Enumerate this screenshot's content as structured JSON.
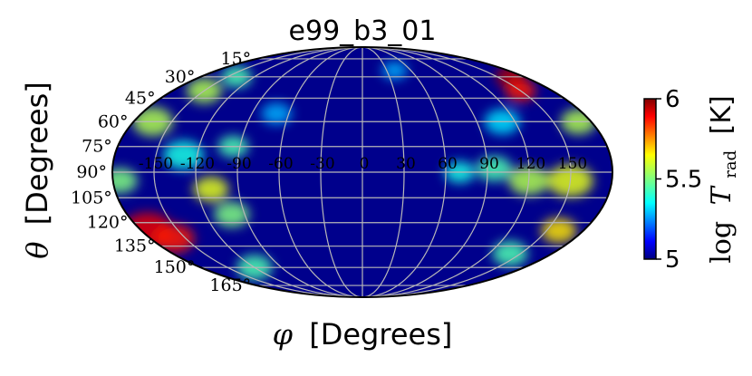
{
  "chart_data": {
    "type": "heatmap",
    "projection": "mollweide",
    "title": "e99_b3_01",
    "xlabel_symbol": "φ",
    "xlabel_unit": "[Degrees]",
    "ylabel_symbol": "θ",
    "ylabel_unit": "[Degrees]",
    "theta_ticks": [
      15,
      30,
      45,
      60,
      75,
      90,
      105,
      120,
      135,
      150,
      165
    ],
    "theta_tick_labels": [
      "15°",
      "30°",
      "45°",
      "60°",
      "75°",
      "90°",
      "105°",
      "120°",
      "135°",
      "150°",
      "165°"
    ],
    "phi_ticks": [
      -150,
      -120,
      -90,
      -60,
      -30,
      0,
      30,
      60,
      90,
      120,
      150
    ],
    "phi_tick_labels": [
      "-150",
      "-120",
      "-90",
      "-60",
      "-30",
      "0",
      "30",
      "60",
      "90",
      "120",
      "150"
    ],
    "colorbar": {
      "label_prefix": "log",
      "label_symbol": "T",
      "label_sub": "rad",
      "label_unit": "[K]",
      "range": [
        5,
        6
      ],
      "ticks": [
        5,
        5.5,
        6
      ],
      "tick_labels": [
        "5",
        "5.5",
        "6"
      ],
      "colormap": "jet"
    },
    "grid": true,
    "hot_regions": [
      {
        "phi": -175,
        "theta": 125,
        "value": 5.9,
        "r": 20
      },
      {
        "phi": -160,
        "theta": 130,
        "value": 5.85,
        "r": 16
      },
      {
        "phi": -165,
        "theta": 60,
        "value": 5.55,
        "r": 16
      },
      {
        "phi": -150,
        "theta": 40,
        "value": 5.55,
        "r": 14
      },
      {
        "phi": -140,
        "theta": 30,
        "value": 5.45,
        "r": 12
      },
      {
        "phi": -175,
        "theta": 95,
        "value": 5.5,
        "r": 14
      },
      {
        "phi": -110,
        "theta": 100,
        "value": 5.6,
        "r": 14
      },
      {
        "phi": -100,
        "theta": 115,
        "value": 5.5,
        "r": 14
      },
      {
        "phi": -95,
        "theta": 75,
        "value": 5.45,
        "r": 12
      },
      {
        "phi": -120,
        "theta": 150,
        "value": 5.45,
        "r": 14
      },
      {
        "phi": -130,
        "theta": 80,
        "value": 5.4,
        "r": 16
      },
      {
        "phi": 165,
        "theta": 30,
        "value": 5.95,
        "r": 12
      },
      {
        "phi": 150,
        "theta": 40,
        "value": 5.85,
        "r": 12
      },
      {
        "phi": 170,
        "theta": 60,
        "value": 5.55,
        "r": 14
      },
      {
        "phi": 150,
        "theta": 95,
        "value": 5.6,
        "r": 18
      },
      {
        "phi": 120,
        "theta": 95,
        "value": 5.55,
        "r": 16
      },
      {
        "phi": 95,
        "theta": 88,
        "value": 5.45,
        "r": 14
      },
      {
        "phi": 70,
        "theta": 90,
        "value": 5.4,
        "r": 12
      },
      {
        "phi": 160,
        "theta": 125,
        "value": 5.65,
        "r": 14
      },
      {
        "phi": 140,
        "theta": 140,
        "value": 5.45,
        "r": 14
      },
      {
        "phi": 110,
        "theta": 60,
        "value": 5.35,
        "r": 14
      },
      {
        "phi": -70,
        "theta": 55,
        "value": 5.3,
        "r": 12
      },
      {
        "phi": 40,
        "theta": 25,
        "value": 5.3,
        "r": 10
      }
    ]
  }
}
